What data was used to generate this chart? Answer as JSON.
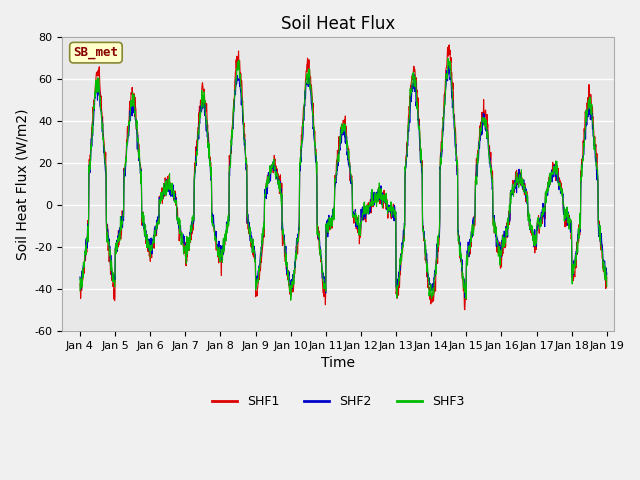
{
  "title": "Soil Heat Flux",
  "xlabel": "Time",
  "ylabel": "Soil Heat Flux (W/m2)",
  "ylim": [
    -60,
    80
  ],
  "xlim_days": [
    3.5,
    19.2
  ],
  "x_tick_positions": [
    4,
    5,
    6,
    7,
    8,
    9,
    10,
    11,
    12,
    13,
    14,
    15,
    16,
    17,
    18,
    19
  ],
  "x_tick_labels": [
    "Jan 4",
    "Jan 5",
    "Jan 6",
    "Jan 7",
    "Jan 8",
    "Jan 9",
    "Jan 10",
    "Jan 11",
    "Jan 12",
    "Jan 13",
    "Jan 14",
    "Jan 15",
    "Jan 16",
    "Jan 17",
    "Jan 18",
    "Jan 19"
  ],
  "ytick_positions": [
    -60,
    -40,
    -20,
    0,
    20,
    40,
    60,
    80
  ],
  "series_colors": [
    "#dd0000",
    "#0000cc",
    "#00bb00"
  ],
  "series_labels": [
    "SHF1",
    "SHF2",
    "SHF3"
  ],
  "annotation_text": "SB_met",
  "annotation_box_facecolor": "#ffffcc",
  "annotation_box_edgecolor": "#888833",
  "annotation_text_color": "#880000",
  "grid_color": "#ffffff",
  "plot_bg_color": "#e8e8e8",
  "fig_bg_color": "#f0f0f0",
  "line_width": 0.8,
  "title_fontsize": 12,
  "axis_label_fontsize": 10,
  "tick_fontsize": 8,
  "legend_fontsize": 9,
  "figsize": [
    6.4,
    4.8
  ],
  "dpi": 100
}
